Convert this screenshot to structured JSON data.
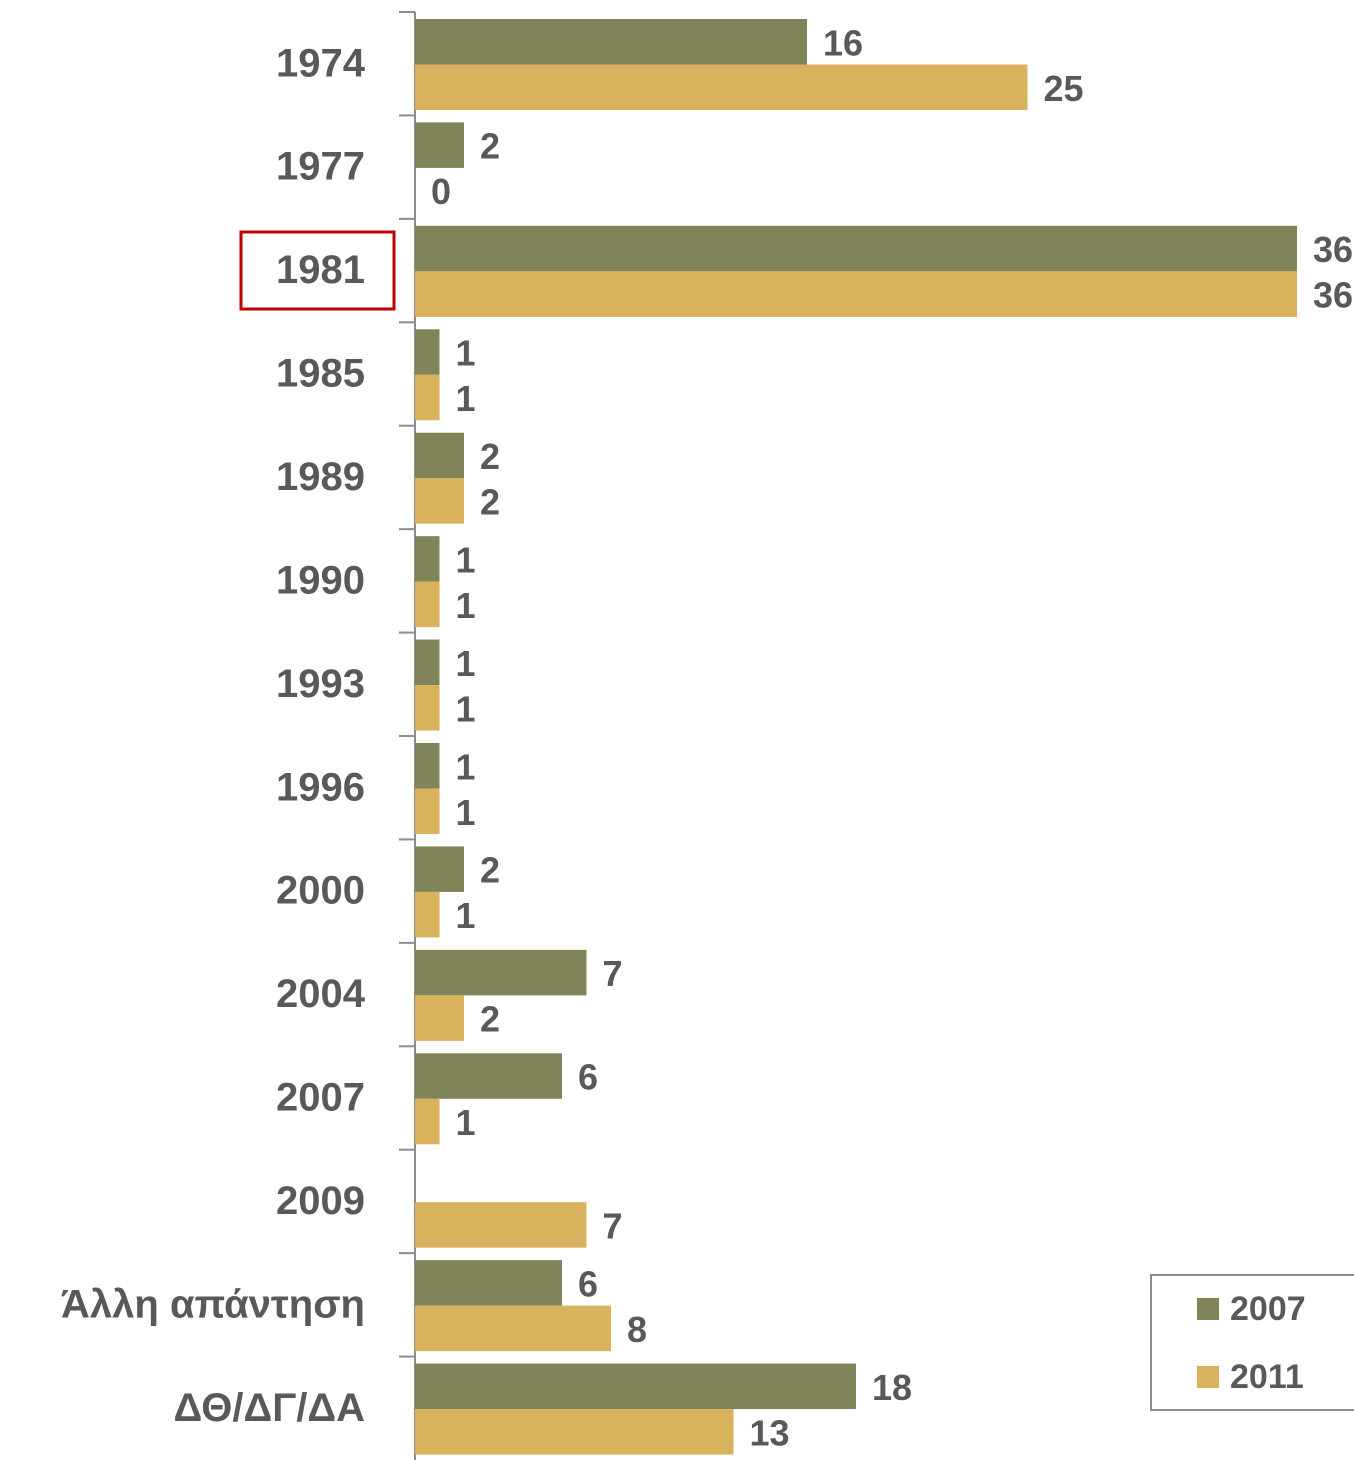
{
  "chart_data": {
    "type": "hbar",
    "categories": [
      "1974",
      "1977",
      "1981",
      "1985",
      "1989",
      "1990",
      "1993",
      "1996",
      "2000",
      "2004",
      "2007",
      "2009",
      "Άλλη απάντηση",
      "ΔΘ/ΔΓ/ΔΑ"
    ],
    "series": [
      {
        "name": "2007",
        "color": "#808458",
        "values": [
          16,
          2,
          36,
          1,
          2,
          1,
          1,
          1,
          2,
          7,
          6,
          null,
          6,
          18
        ]
      },
      {
        "name": "2011",
        "color": "#d9b25e",
        "values": [
          25,
          0,
          36,
          1,
          2,
          1,
          1,
          1,
          1,
          2,
          1,
          7,
          8,
          13
        ]
      }
    ],
    "xlim": [
      0,
      38
    ],
    "legend": "bottom-right"
  }
}
